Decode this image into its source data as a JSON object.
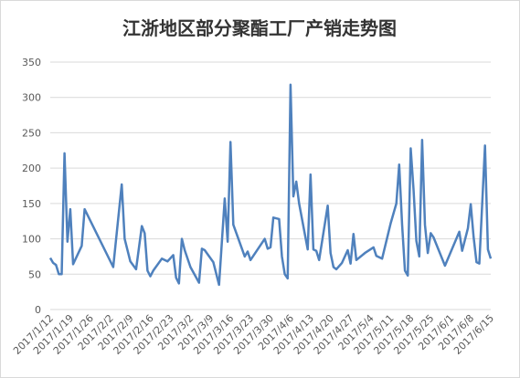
{
  "chart_data": {
    "type": "line",
    "title": "江浙地区部分聚酯工厂产销走势图",
    "x": [
      "2017/1/12",
      "2017/1/13",
      "2017/1/14",
      "2017/1/15",
      "2017/1/16",
      "2017/1/17",
      "2017/1/18",
      "2017/1/19",
      "2017/1/20",
      "2017/1/23",
      "2017/1/24",
      "2017/2/3",
      "2017/2/6",
      "2017/2/7",
      "2017/2/9",
      "2017/2/11",
      "2017/2/13",
      "2017/2/14",
      "2017/2/15",
      "2017/2/16",
      "2017/2/17",
      "2017/2/20",
      "2017/2/22",
      "2017/2/24",
      "2017/2/25",
      "2017/2/26",
      "2017/2/27",
      "2017/2/28",
      "2017/3/2",
      "2017/3/5",
      "2017/3/6",
      "2017/3/7",
      "2017/3/10",
      "2017/3/12",
      "2017/3/14",
      "2017/3/15",
      "2017/3/16",
      "2017/3/17",
      "2017/3/21",
      "2017/3/22",
      "2017/3/23",
      "2017/3/28",
      "2017/3/29",
      "2017/3/30",
      "2017/3/31",
      "2017/4/2",
      "2017/4/3",
      "2017/4/4",
      "2017/4/5",
      "2017/4/6",
      "2017/4/7",
      "2017/4/8",
      "2017/4/9",
      "2017/4/12",
      "2017/4/13",
      "2017/4/14",
      "2017/4/15",
      "2017/4/16",
      "2017/4/19",
      "2017/4/20",
      "2017/4/21",
      "2017/4/22",
      "2017/4/24",
      "2017/4/26",
      "2017/4/27",
      "2017/4/28",
      "2017/4/29",
      "2017/5/2",
      "2017/5/5",
      "2017/5/6",
      "2017/5/8",
      "2017/5/11",
      "2017/5/13",
      "2017/5/14",
      "2017/5/15",
      "2017/5/16",
      "2017/5/17",
      "2017/5/18",
      "2017/5/19",
      "2017/5/20",
      "2017/5/21",
      "2017/5/22",
      "2017/5/23",
      "2017/5/24",
      "2017/5/25",
      "2017/5/26",
      "2017/5/29",
      "2017/5/30",
      "2017/6/4",
      "2017/6/5",
      "2017/6/7",
      "2017/6/8",
      "2017/6/9",
      "2017/6/10",
      "2017/6/11",
      "2017/6/13",
      "2017/6/14",
      "2017/6/15"
    ],
    "series": [
      {
        "color": "#4f81bd",
        "values": [
          73,
          66,
          63,
          50,
          50,
          221,
          96,
          142,
          64,
          90,
          142,
          60,
          177,
          100,
          68,
          57,
          118,
          108,
          55,
          47,
          55,
          72,
          68,
          77,
          45,
          37,
          100,
          84,
          60,
          38,
          86,
          84,
          67,
          35,
          157,
          96,
          237,
          120,
          75,
          82,
          70,
          100,
          86,
          88,
          130,
          128,
          75,
          50,
          44,
          318,
          160,
          181,
          150,
          85,
          191,
          85,
          83,
          70,
          147,
          80,
          60,
          57,
          66,
          84,
          65,
          107,
          70,
          80,
          88,
          76,
          72,
          122,
          150,
          205,
          120,
          55,
          48,
          228,
          170,
          97,
          75,
          240,
          120,
          80,
          108,
          102,
          72,
          62,
          110,
          83,
          115,
          149,
          103,
          67,
          65,
          232,
          85,
          72
        ]
      }
    ],
    "xlim": [
      "2017/1/12",
      "2017/6/15"
    ],
    "xticks": [
      "2017/1/12",
      "2017/1/19",
      "2017/1/26",
      "2017/2/2",
      "2017/2/9",
      "2017/2/16",
      "2017/2/23",
      "2017/3/2",
      "2017/3/9",
      "2017/3/16",
      "2017/3/23",
      "2017/3/30",
      "2017/4/6",
      "2017/4/13",
      "2017/4/20",
      "2017/4/27",
      "2017/5/4",
      "2017/5/11",
      "2017/5/18",
      "2017/5/25",
      "2017/6/1",
      "2017/6/8",
      "2017/6/15"
    ],
    "ylim": [
      0,
      350
    ],
    "yticks": [
      0,
      50,
      100,
      150,
      200,
      250,
      300,
      350
    ],
    "grid": true
  }
}
